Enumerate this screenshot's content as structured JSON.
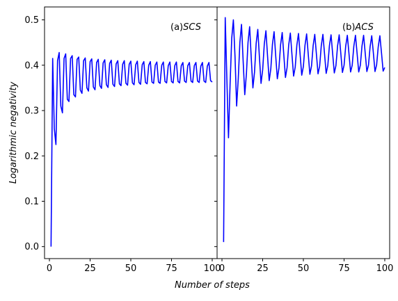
{
  "figure": {
    "ylabel": "Logarithmic negativity",
    "xlabel": "Number of steps"
  },
  "chart_data": [
    {
      "type": "line",
      "panel_label": "(a)",
      "panel_label_italic": "SCS",
      "xlim": [
        -3,
        103
      ],
      "ylim": [
        -0.0265,
        0.5285
      ],
      "x_ticks": [
        0,
        25,
        50,
        75,
        100
      ],
      "y_ticks": [
        0.0,
        0.1,
        0.2,
        0.3,
        0.4,
        0.5
      ],
      "y_tick_labels": [
        "0.0",
        "0.1",
        "0.2",
        "0.3",
        "0.4",
        "0.5"
      ],
      "y_tick_labels_shown": true,
      "grid": false,
      "color": "#0000ff",
      "series": [
        {
          "x": [
            1,
            2,
            3,
            4,
            5,
            6,
            7,
            8,
            9,
            10,
            11,
            12,
            13,
            14,
            15,
            16,
            17,
            18,
            19,
            20,
            21,
            22,
            23,
            24,
            25,
            26,
            27,
            28,
            29,
            30,
            31,
            32,
            33,
            34,
            35,
            36,
            37,
            38,
            39,
            40,
            41,
            42,
            43,
            44,
            45,
            46,
            47,
            48,
            49,
            50,
            51,
            52,
            53,
            54,
            55,
            56,
            57,
            58,
            59,
            60,
            61,
            62,
            63,
            64,
            65,
            66,
            67,
            68,
            69,
            70,
            71,
            72,
            73,
            74,
            75,
            76,
            77,
            78,
            79,
            80,
            81,
            82,
            83,
            84,
            85,
            86,
            87,
            88,
            89,
            90,
            91,
            92,
            93,
            94,
            95,
            96,
            97,
            98,
            99,
            100
          ],
          "values": [
            0.0,
            0.415,
            0.26,
            0.225,
            0.41,
            0.428,
            0.31,
            0.295,
            0.415,
            0.425,
            0.325,
            0.32,
            0.415,
            0.421,
            0.335,
            0.33,
            0.413,
            0.418,
            0.345,
            0.338,
            0.41,
            0.416,
            0.35,
            0.343,
            0.408,
            0.414,
            0.352,
            0.346,
            0.406,
            0.413,
            0.355,
            0.349,
            0.405,
            0.412,
            0.357,
            0.351,
            0.404,
            0.411,
            0.358,
            0.353,
            0.403,
            0.41,
            0.359,
            0.355,
            0.402,
            0.41,
            0.36,
            0.356,
            0.402,
            0.409,
            0.361,
            0.357,
            0.401,
            0.409,
            0.362,
            0.358,
            0.401,
            0.408,
            0.362,
            0.359,
            0.4,
            0.408,
            0.363,
            0.36,
            0.4,
            0.407,
            0.363,
            0.36,
            0.4,
            0.407,
            0.364,
            0.361,
            0.399,
            0.407,
            0.364,
            0.361,
            0.399,
            0.407,
            0.364,
            0.361,
            0.399,
            0.406,
            0.365,
            0.362,
            0.399,
            0.406,
            0.365,
            0.362,
            0.399,
            0.406,
            0.365,
            0.362,
            0.398,
            0.406,
            0.365,
            0.362,
            0.398,
            0.406,
            0.366,
            0.363
          ]
        }
      ]
    },
    {
      "type": "line",
      "panel_label": "(b)",
      "panel_label_italic": "ACS",
      "xlim": [
        -3,
        103
      ],
      "ylim": [
        -0.0265,
        0.5285
      ],
      "x_ticks": [
        0,
        25,
        50,
        75,
        100
      ],
      "y_ticks": [
        0.0,
        0.1,
        0.2,
        0.3,
        0.4,
        0.5
      ],
      "y_tick_labels_shown": false,
      "grid": false,
      "color": "#0000ff",
      "series": [
        {
          "x": [
            1,
            2,
            3,
            4,
            5,
            6,
            7,
            8,
            9,
            10,
            11,
            12,
            13,
            14,
            15,
            16,
            17,
            18,
            19,
            20,
            21,
            22,
            23,
            24,
            25,
            26,
            27,
            28,
            29,
            30,
            31,
            32,
            33,
            34,
            35,
            36,
            37,
            38,
            39,
            40,
            41,
            42,
            43,
            44,
            45,
            46,
            47,
            48,
            49,
            50,
            51,
            52,
            53,
            54,
            55,
            56,
            57,
            58,
            59,
            60,
            61,
            62,
            63,
            64,
            65,
            66,
            67,
            68,
            69,
            70,
            71,
            72,
            73,
            74,
            75,
            76,
            77,
            78,
            79,
            80,
            81,
            82,
            83,
            84,
            85,
            86,
            87,
            88,
            89,
            90,
            91,
            92,
            93,
            94,
            95,
            96,
            97,
            98,
            99,
            100
          ],
          "values": [
            0.01,
            0.505,
            0.37,
            0.24,
            0.36,
            0.46,
            0.5,
            0.42,
            0.31,
            0.37,
            0.45,
            0.49,
            0.41,
            0.335,
            0.38,
            0.45,
            0.485,
            0.415,
            0.35,
            0.385,
            0.448,
            0.479,
            0.418,
            0.36,
            0.39,
            0.447,
            0.476,
            0.42,
            0.366,
            0.392,
            0.446,
            0.474,
            0.421,
            0.37,
            0.394,
            0.445,
            0.472,
            0.422,
            0.373,
            0.395,
            0.445,
            0.471,
            0.423,
            0.376,
            0.396,
            0.444,
            0.47,
            0.424,
            0.378,
            0.397,
            0.444,
            0.469,
            0.424,
            0.38,
            0.398,
            0.443,
            0.468,
            0.425,
            0.381,
            0.398,
            0.443,
            0.468,
            0.425,
            0.382,
            0.399,
            0.443,
            0.467,
            0.425,
            0.383,
            0.399,
            0.442,
            0.467,
            0.426,
            0.384,
            0.4,
            0.442,
            0.466,
            0.426,
            0.385,
            0.4,
            0.442,
            0.466,
            0.426,
            0.385,
            0.4,
            0.442,
            0.466,
            0.426,
            0.386,
            0.4,
            0.441,
            0.465,
            0.427,
            0.386,
            0.401,
            0.441,
            0.465,
            0.427,
            0.387,
            0.395
          ]
        }
      ]
    }
  ]
}
